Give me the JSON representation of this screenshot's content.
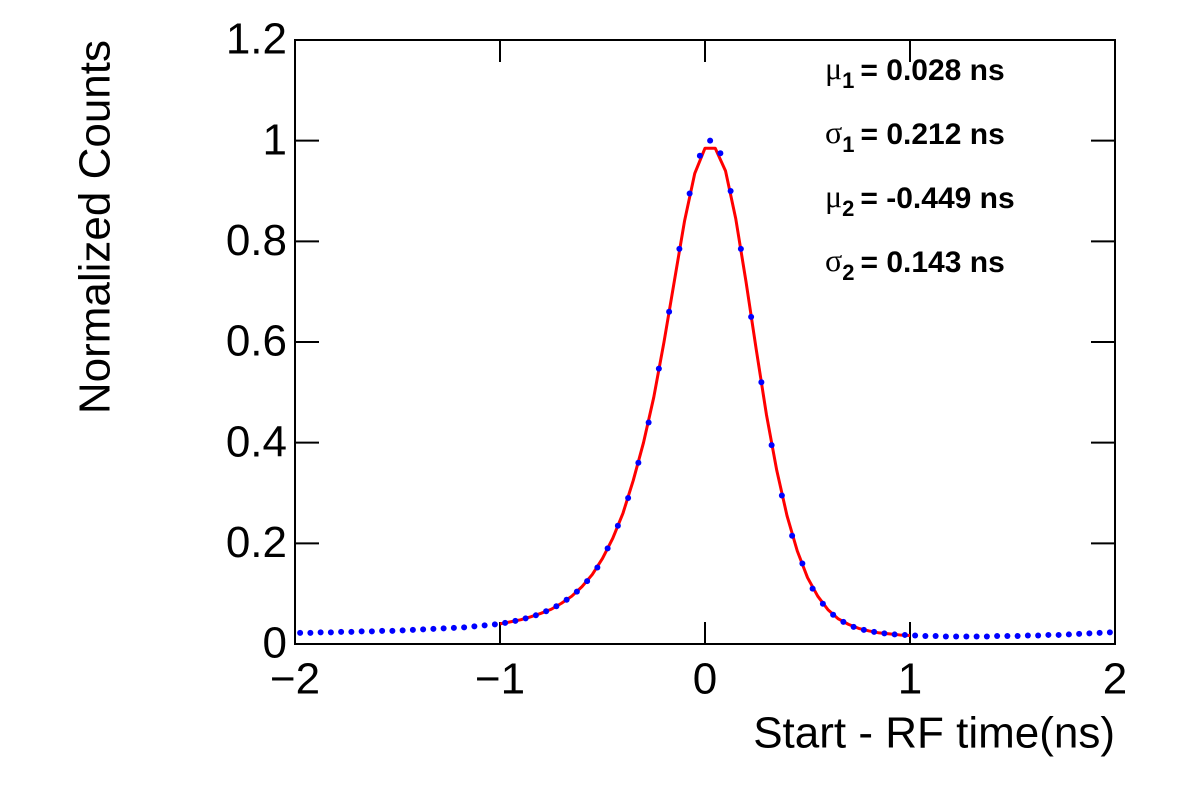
{
  "chart_data": {
    "type": "scatter",
    "x_label": "Start - RF time(ns)",
    "y_label": "Normalized Counts",
    "xlim": [
      -2,
      2
    ],
    "ylim": [
      0,
      1.2
    ],
    "xticks": [
      {
        "value": -2,
        "label": "−2"
      },
      {
        "value": -1,
        "label": "−1"
      },
      0,
      1,
      2
    ],
    "yticks": [
      0,
      0.2,
      0.4,
      0.6,
      0.8,
      1,
      1.2
    ],
    "annotations": [
      {
        "symbol": "μ",
        "sub": "1",
        "text": "= 0.028 ns"
      },
      {
        "symbol": "σ",
        "sub": "1",
        "text": "= 0.212 ns"
      },
      {
        "symbol": "μ",
        "sub": "2",
        "text": "= -0.449 ns"
      },
      {
        "symbol": "σ",
        "sub": "2",
        "text": "= 0.143 ns"
      }
    ],
    "series": [
      {
        "style": "markers",
        "color": "#0000ff",
        "x": [
          -1.975,
          -1.925,
          -1.875,
          -1.825,
          -1.775,
          -1.725,
          -1.675,
          -1.625,
          -1.575,
          -1.525,
          -1.475,
          -1.425,
          -1.375,
          -1.325,
          -1.275,
          -1.225,
          -1.175,
          -1.125,
          -1.075,
          -1.025,
          -0.975,
          -0.925,
          -0.875,
          -0.825,
          -0.775,
          -0.725,
          -0.675,
          -0.625,
          -0.575,
          -0.525,
          -0.475,
          -0.425,
          -0.375,
          -0.325,
          -0.275,
          -0.225,
          -0.175,
          -0.125,
          -0.075,
          -0.025,
          0.025,
          0.075,
          0.125,
          0.175,
          0.225,
          0.275,
          0.325,
          0.375,
          0.425,
          0.475,
          0.525,
          0.575,
          0.625,
          0.675,
          0.725,
          0.775,
          0.825,
          0.875,
          0.925,
          0.975,
          1.025,
          1.075,
          1.125,
          1.175,
          1.225,
          1.275,
          1.325,
          1.375,
          1.425,
          1.475,
          1.525,
          1.575,
          1.625,
          1.675,
          1.725,
          1.775,
          1.825,
          1.875,
          1.925,
          1.975
        ],
        "values": [
          0.022,
          0.022,
          0.023,
          0.023,
          0.024,
          0.024,
          0.025,
          0.025,
          0.026,
          0.026,
          0.027,
          0.028,
          0.029,
          0.03,
          0.031,
          0.032,
          0.033,
          0.035,
          0.037,
          0.039,
          0.042,
          0.046,
          0.051,
          0.057,
          0.065,
          0.075,
          0.088,
          0.104,
          0.125,
          0.152,
          0.19,
          0.235,
          0.29,
          0.36,
          0.44,
          0.547,
          0.66,
          0.785,
          0.895,
          0.97,
          1.0,
          0.975,
          0.9,
          0.785,
          0.65,
          0.52,
          0.395,
          0.295,
          0.215,
          0.16,
          0.11,
          0.08,
          0.058,
          0.044,
          0.034,
          0.028,
          0.024,
          0.021,
          0.019,
          0.018,
          0.017,
          0.016,
          0.016,
          0.015,
          0.015,
          0.015,
          0.015,
          0.015,
          0.016,
          0.016,
          0.016,
          0.017,
          0.017,
          0.018,
          0.018,
          0.019,
          0.02,
          0.021,
          0.022,
          0.023
        ]
      },
      {
        "style": "line",
        "color": "#ff0000",
        "x": [
          -1,
          -0.95,
          -0.9,
          -0.85,
          -0.8,
          -0.75,
          -0.7,
          -0.65,
          -0.6,
          -0.55,
          -0.5,
          -0.45,
          -0.4,
          -0.35,
          -0.3,
          -0.25,
          -0.2,
          -0.15,
          -0.1,
          -0.05,
          0,
          0.05,
          0.1,
          0.15,
          0.2,
          0.25,
          0.3,
          0.35,
          0.4,
          0.45,
          0.5,
          0.55,
          0.6,
          0.65,
          0.7,
          0.75,
          0.8,
          0.85,
          0.9,
          0.95,
          1
        ],
        "values": [
          0.04,
          0.044,
          0.048,
          0.054,
          0.061,
          0.069,
          0.081,
          0.095,
          0.114,
          0.138,
          0.17,
          0.21,
          0.26,
          0.325,
          0.4,
          0.49,
          0.6,
          0.72,
          0.84,
          0.935,
          0.985,
          0.985,
          0.94,
          0.845,
          0.72,
          0.585,
          0.455,
          0.345,
          0.255,
          0.185,
          0.132,
          0.095,
          0.068,
          0.05,
          0.039,
          0.031,
          0.026,
          0.022,
          0.02,
          0.018,
          0.017
        ]
      }
    ]
  }
}
